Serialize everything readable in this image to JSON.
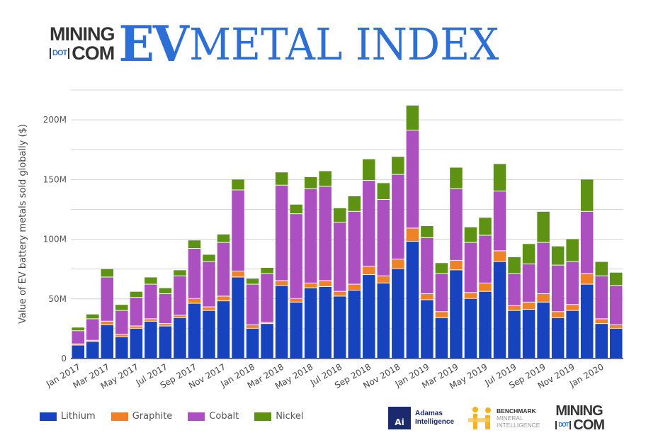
{
  "header": {
    "logo_line1": "MINING",
    "logo_dot": "DOT",
    "logo_line2": "COM",
    "title_ev": "EV",
    "title_rest": "METAL INDEX"
  },
  "footer": {
    "adamas_badge": "Ai",
    "adamas_line1": "Adamas",
    "adamas_line2": "Intelligence",
    "benchmark_line1": "BENCHMARK",
    "benchmark_line2": "MINERAL",
    "benchmark_line3": "INTELLIGENCE",
    "mining_line1": "MINING",
    "mining_dot": "DOT",
    "mining_line2": "COM"
  },
  "chart_data": {
    "type": "bar",
    "stacked": true,
    "ylabel": "Value of EV battery metals sold globally ($)",
    "ylim": [
      0,
      225000000
    ],
    "yticks": [
      0,
      50000000,
      100000000,
      150000000,
      200000000
    ],
    "ytick_labels": [
      "0",
      "50M",
      "100M",
      "150M",
      "200M"
    ],
    "grid": true,
    "legend_position": "bottom-left",
    "categories": [
      "Jan 2017",
      "Feb 2017",
      "Mar 2017",
      "Apr 2017",
      "May 2017",
      "Jun 2017",
      "Jul 2017",
      "Aug 2017",
      "Sep 2017",
      "Oct 2017",
      "Nov 2017",
      "Dec 2017",
      "Jan 2018",
      "Feb 2018",
      "Mar 2018",
      "Apr 2018",
      "May 2018",
      "Jun 2018",
      "Jul 2018",
      "Aug 2018",
      "Sep 2018",
      "Oct 2018",
      "Nov 2018",
      "Dec 2018",
      "Jan 2019",
      "Feb 2019",
      "Mar 2019",
      "Apr 2019",
      "May 2019",
      "Jun 2019",
      "Jul 2019",
      "Aug 2019",
      "Sep 2019",
      "Oct 2019",
      "Nov 2019",
      "Dec 2019",
      "Jan 2020",
      "Feb 2020"
    ],
    "xtick_labels": [
      "Jan 2017",
      "Mar 2017",
      "May 2017",
      "Jul 2017",
      "Sep 2017",
      "Nov 2017",
      "Jan 2018",
      "Mar 2018",
      "May 2018",
      "Jul 2018",
      "Sep 2018",
      "Nov 2018",
      "Jan 2019",
      "Mar 2019",
      "May 2019",
      "Jul 2019",
      "Sep 2019",
      "Nov 2019",
      "Jan 2020"
    ],
    "unit": "millions USD",
    "series": [
      {
        "name": "Lithium",
        "color": "#1743bf",
        "values": [
          11,
          14,
          28,
          18,
          25,
          31,
          27,
          34,
          46,
          40,
          48,
          68,
          25,
          29,
          61,
          47,
          59,
          60,
          52,
          57,
          70,
          63,
          75,
          98,
          49,
          34,
          74,
          50,
          56,
          81,
          40,
          41,
          47,
          34,
          40,
          62,
          29,
          25
        ]
      },
      {
        "name": "Graphite",
        "color": "#ee8229",
        "values": [
          1,
          1,
          3,
          2,
          2,
          2,
          2,
          2,
          4,
          3,
          4,
          5,
          3,
          1,
          4,
          3,
          4,
          5,
          4,
          5,
          7,
          6,
          8,
          11,
          5,
          5,
          8,
          5,
          7,
          9,
          4,
          6,
          7,
          5,
          5,
          9,
          4,
          3
        ]
      },
      {
        "name": "Cobalt",
        "color": "#ac4fc1",
        "values": [
          11,
          18,
          37,
          20,
          24,
          29,
          25,
          33,
          42,
          38,
          45,
          68,
          34,
          41,
          80,
          71,
          79,
          79,
          58,
          61,
          72,
          64,
          71,
          82,
          47,
          32,
          60,
          42,
          40,
          50,
          27,
          32,
          43,
          39,
          36,
          52,
          36,
          33
        ]
      },
      {
        "name": "Nickel",
        "color": "#5e9213",
        "values": [
          3,
          4,
          7,
          5,
          5,
          6,
          5,
          5,
          7,
          6,
          7,
          9,
          5,
          5,
          11,
          8,
          10,
          13,
          12,
          13,
          18,
          14,
          15,
          21,
          10,
          9,
          18,
          13,
          15,
          23,
          14,
          17,
          26,
          16,
          19,
          27,
          12,
          11
        ]
      }
    ]
  }
}
